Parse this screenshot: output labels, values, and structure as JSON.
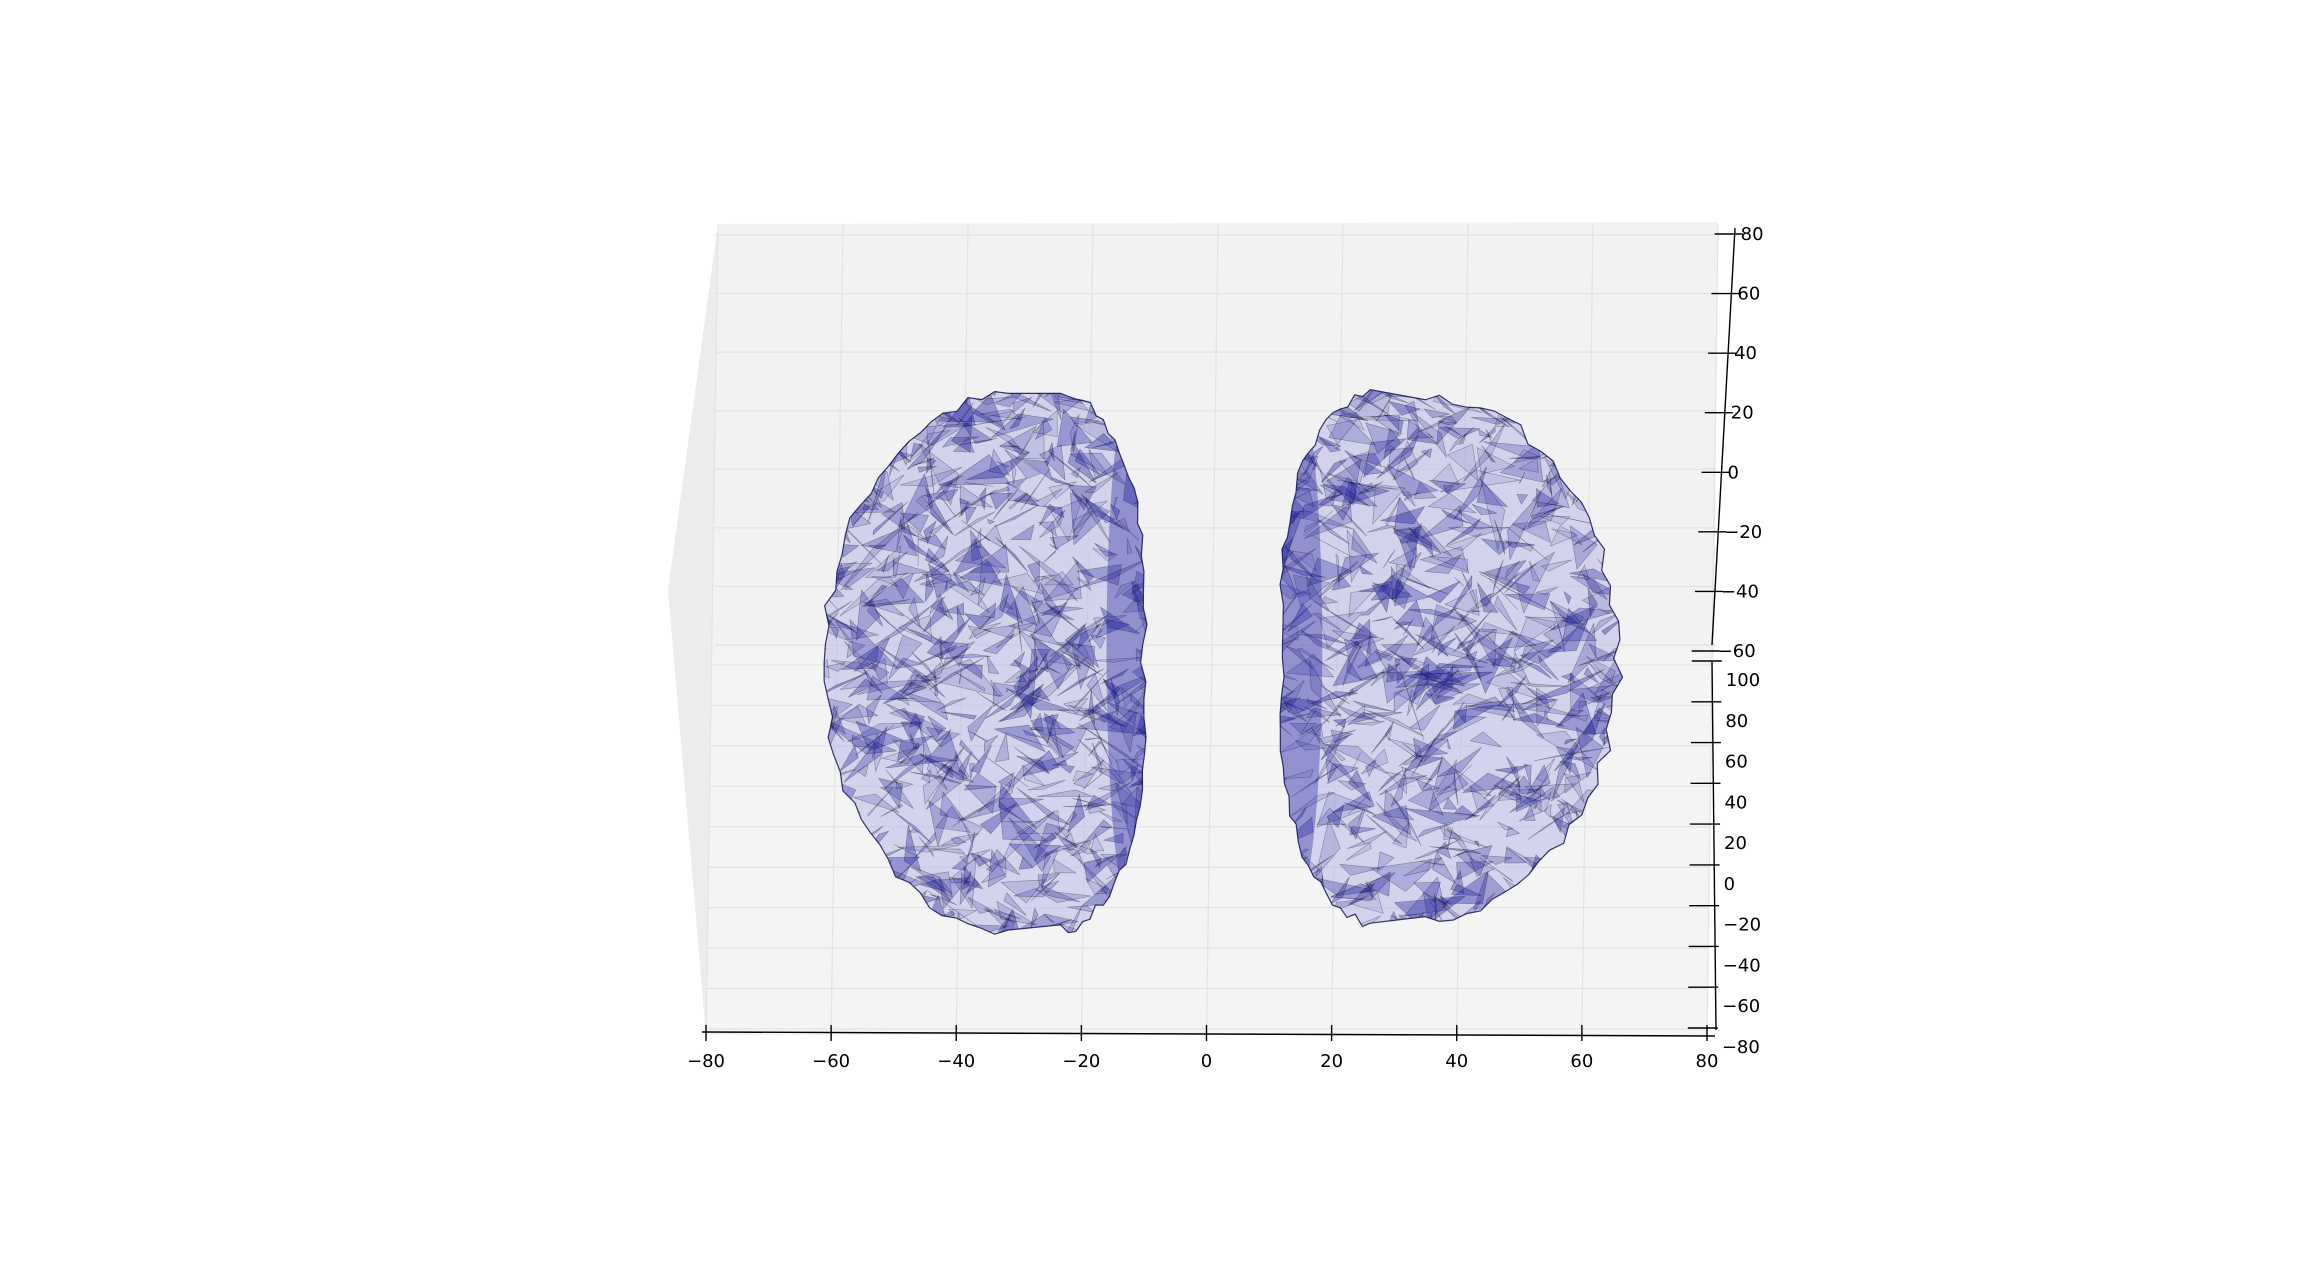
{
  "chart_data": {
    "type": "3d-surface-mesh",
    "title": "",
    "xlabel": "",
    "ylabel": "",
    "zlabel": "",
    "grid": true,
    "legend": "none",
    "mesh_color": "#1a1a9c",
    "edge_color": "#000000",
    "pane_color": "#f2f2f2",
    "grid_color": "#e2e2e2",
    "x_axis": {
      "range": [
        -80,
        80
      ],
      "ticks": [
        -80,
        -60,
        -40,
        -20,
        0,
        20,
        40,
        60,
        80
      ],
      "tick_labels": [
        "−80",
        "−60",
        "−40",
        "−20",
        "0",
        "20",
        "40",
        "60",
        "80"
      ]
    },
    "y_axis": {
      "range": [
        -80,
        100
      ],
      "ticks": [
        -80,
        -60,
        -40,
        -20,
        0,
        20,
        40,
        60,
        80,
        100
      ],
      "tick_labels": [
        "−80",
        "−60",
        "−40",
        "−20",
        "0",
        "20",
        "40",
        "60",
        "80",
        "100"
      ]
    },
    "z_axis": {
      "range": [
        -60,
        80
      ],
      "ticks": [
        -60,
        -40,
        -20,
        0,
        20,
        40,
        60,
        80
      ],
      "tick_labels": [
        "−60",
        "−40",
        "−20",
        "0",
        "20",
        "40",
        "60",
        "80"
      ]
    },
    "surface": {
      "hemispheres": [
        {
          "side": "left",
          "x_range": [
            -62,
            -1
          ],
          "y_range": [
            -72,
            58
          ]
        },
        {
          "side": "right",
          "x_range": [
            1,
            65
          ],
          "y_range": [
            -70,
            58
          ]
        }
      ]
    }
  }
}
